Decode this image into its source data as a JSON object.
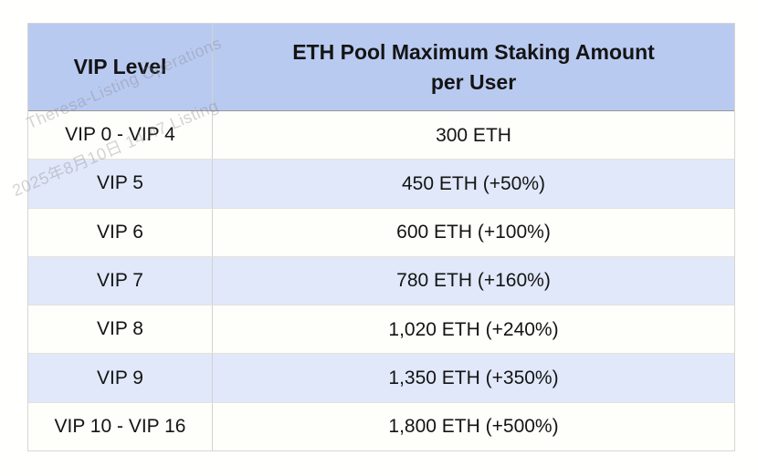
{
  "watermark": {
    "line1": "Theresa-Listing Operations",
    "line2": "2025年8月10日 14:47 Listing"
  },
  "table": {
    "header": {
      "col1": "VIP Level",
      "col2_line1": "ETH Pool Maximum Staking Amount",
      "col2_line2": "per User"
    },
    "rows": [
      {
        "level": "VIP 0 - VIP 4",
        "amount": "300 ETH"
      },
      {
        "level": "VIP 5",
        "amount": "450 ETH (+50%)"
      },
      {
        "level": "VIP 6",
        "amount": "600 ETH (+100%)"
      },
      {
        "level": "VIP 7",
        "amount": "780 ETH (+160%)"
      },
      {
        "level": "VIP 8",
        "amount": "1,020 ETH (+240%)"
      },
      {
        "level": "VIP 9",
        "amount": "1,350 ETH (+350%)"
      },
      {
        "level": "VIP 10 - VIP 16",
        "amount": "1,800 ETH (+500%)"
      }
    ]
  },
  "colors": {
    "header_bg": "#b9caf1",
    "row_bg": "#fefefb",
    "row_alt_bg": "#e0e8f9",
    "outer_border": "#d8d6d2",
    "header_border": "#97979b",
    "row_border": "#e3e1da",
    "divider": "#d2d2d0",
    "text": "#141414",
    "watermark": "#7d7d82"
  }
}
